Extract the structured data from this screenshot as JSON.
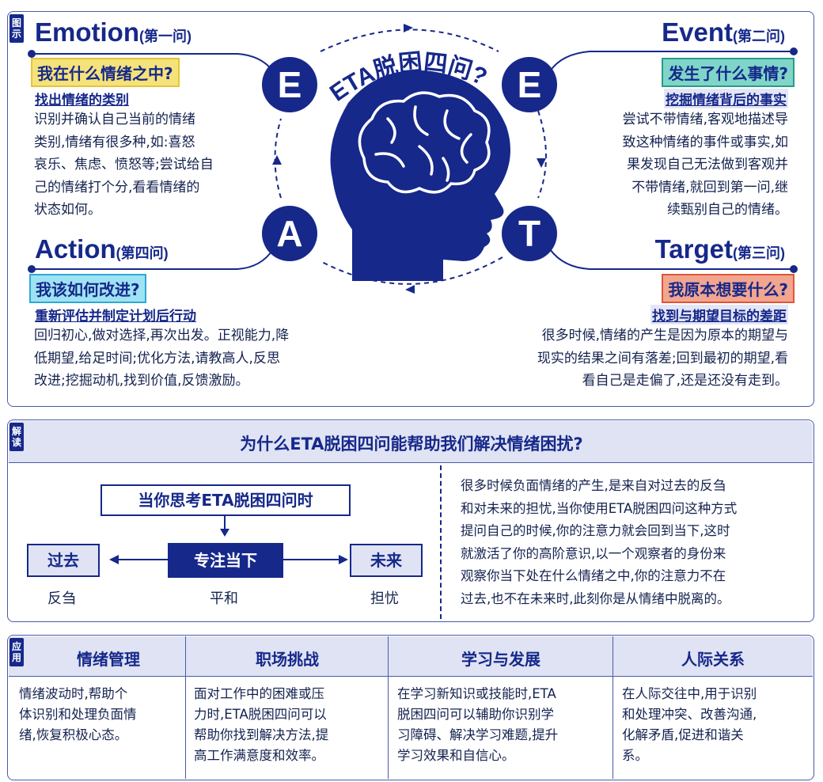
{
  "diagram": {
    "tag": [
      "图",
      "示"
    ],
    "center_title": "ETA脱困四问?",
    "emotion": {
      "letter": "E",
      "title_en": "Emotion",
      "title_cn": "(第一问)",
      "question": "我在什么情绪之中?",
      "subtitle": "找出情绪的类别",
      "lines": [
        "识别并确认自己当前的情绪",
        "类别,情绪有很多种,如:喜怒",
        "哀乐、焦虑、愤怒等;尝试给自",
        "己的情绪打个分,看看情绪的",
        "状态如何。"
      ]
    },
    "event": {
      "letter": "E",
      "title_en": "Event",
      "title_cn": "(第二问)",
      "question": "发生了什么事情?",
      "subtitle": "挖掘情绪背后的事实",
      "lines": [
        "尝试不带情绪,客观地描述导",
        "致这种情绪的事件或事实,如",
        "果发现自己无法做到客观并",
        "不带情绪,就回到第一问,继",
        "续甄别自己的情绪。"
      ]
    },
    "action": {
      "letter": "A",
      "title_en": "Action",
      "title_cn": "(第四问)",
      "question": "我该如何改进?",
      "subtitle": "重新评估并制定计划后行动",
      "lines": [
        "回归初心,做对选择,再次出发。正视能力,降",
        "低期望,给足时间;优化方法,请教高人,反思",
        "改进;挖掘动机,找到价值,反馈激励。"
      ]
    },
    "target": {
      "letter": "T",
      "title_en": "Target",
      "title_cn": "(第三问)",
      "question": "我原本想要什么?",
      "subtitle": "找到与期望目标的差距",
      "lines": [
        "很多时候,情绪的产生是因为原本的期望与",
        "现实的结果之间有落差;回到最初的期望,看",
        "看自己是走偏了,还是还没有走到。"
      ]
    },
    "colors": {
      "navy": "#16288a",
      "yellow": "#f5e27a",
      "teal": "#7fd6c8",
      "cyan": "#9ee3f3",
      "salmon": "#f2a58f"
    }
  },
  "interpret": {
    "tag": [
      "解",
      "读"
    ],
    "title": "为什么ETA脱困四问能帮助我们解决情绪困扰?",
    "top_box": "当你思考ETA脱困四问时",
    "left_box": "过去",
    "center_box": "专注当下",
    "right_box": "未来",
    "left_caption": "反刍",
    "center_caption": "平和",
    "right_caption": "担忧",
    "lines": [
      "很多时候负面情绪的产生,是来自对过去的反刍",
      "和对未来的担忧,当你使用ETA脱困四问这种方式",
      "提问自己的时候,你的注意力就会回到当下,这时",
      "就激活了你的高阶意识,以一个观察者的身份来",
      "观察你当下处在什么情绪之中,你的注意力不在",
      "过去,也不在未来时,此刻你是从情绪中脱离的。"
    ]
  },
  "apply": {
    "tag": [
      "应",
      "用"
    ],
    "columns": [
      {
        "head": "情绪管理",
        "lines": [
          "情绪波动时,帮助个",
          "体识别和处理负面情",
          "绪,恢复积极心态。"
        ]
      },
      {
        "head": "职场挑战",
        "lines": [
          "面对工作中的困难或压",
          "力时,ETA脱困四问可以",
          "帮助你找到解决方法,提",
          "高工作满意度和效率。"
        ]
      },
      {
        "head": "学习与发展",
        "lines": [
          "在学习新知识或技能时,ETA",
          "脱困四问可以辅助你识别学",
          "习障碍、解决学习难题,提升",
          "学习效果和自信心。"
        ]
      },
      {
        "head": "人际关系",
        "lines": [
          "在人际交往中,用于识别",
          "和处理冲突、改善沟通,",
          "化解矛盾,促进和谐关",
          "系。"
        ]
      }
    ]
  }
}
